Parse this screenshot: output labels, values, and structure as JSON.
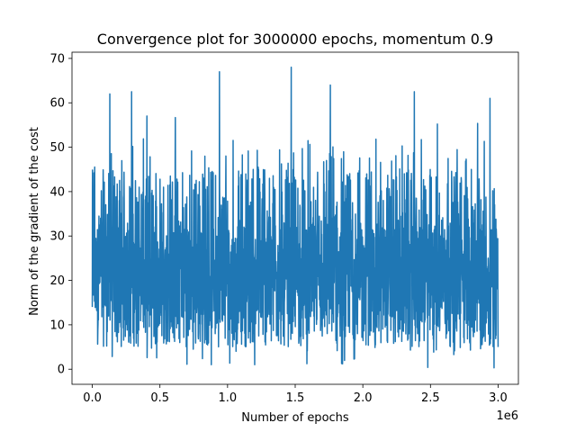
{
  "chart_data": {
    "type": "line",
    "title": "Convergence plot for 3000000 epochs, momentum 0.9",
    "xlabel": "Number of epochs",
    "ylabel": "Norm of the gradient of the cost",
    "x_offset_text": "1e6",
    "xlim": [
      -150000,
      3150000
    ],
    "ylim": [
      -3.4,
      71.4
    ],
    "x_ticks": [
      0,
      500000,
      1000000,
      1500000,
      2000000,
      2500000,
      3000000
    ],
    "x_tick_labels": [
      "0.0",
      "0.5",
      "1.0",
      "1.5",
      "2.0",
      "2.5",
      "3.0"
    ],
    "y_ticks": [
      0,
      10,
      20,
      30,
      40,
      50,
      60,
      70
    ],
    "y_tick_labels": [
      "0",
      "10",
      "20",
      "30",
      "40",
      "50",
      "60",
      "70"
    ],
    "grid": false,
    "series": [
      {
        "color": "#1f77b4",
        "x_start": 0,
        "x_end": 3000000,
        "baseline_mean": 20,
        "y_min_observed": 0.3,
        "y_max_observed": 68,
        "notable_peaks": [
          {
            "x": 940000,
            "y": 67
          },
          {
            "x": 1470000,
            "y": 68
          },
          {
            "x": 1760000,
            "y": 64
          },
          {
            "x": 2380000,
            "y": 62.5
          },
          {
            "x": 290000,
            "y": 62.5
          },
          {
            "x": 130000,
            "y": 62
          },
          {
            "x": 2940000,
            "y": 61
          }
        ]
      }
    ]
  }
}
